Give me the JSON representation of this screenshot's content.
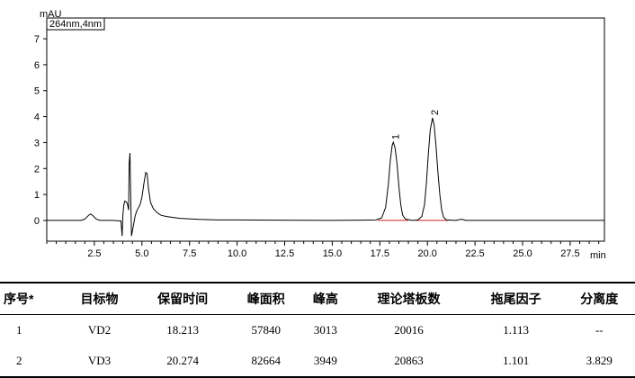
{
  "chart_data": {
    "type": "line",
    "ylabel": "mAU",
    "xlabel": "min",
    "series_label": "264nm,4nm",
    "xlim": [
      0,
      29.3
    ],
    "ylim": [
      -0.8,
      7.8
    ],
    "x_ticks": [
      "2.5",
      "5.0",
      "7.5",
      "10.0",
      "12.5",
      "15.0",
      "17.5",
      "20.0",
      "22.5",
      "25.0",
      "27.5"
    ],
    "y_ticks": [
      "0",
      "1",
      "2",
      "3",
      "4",
      "5",
      "6",
      "7"
    ],
    "x_tick_values": [
      2.5,
      5.0,
      7.5,
      10.0,
      12.5,
      15.0,
      17.5,
      20.0,
      22.5,
      25.0,
      27.5
    ],
    "y_tick_values": [
      0,
      1,
      2,
      3,
      4,
      5,
      6,
      7
    ],
    "peaks": [
      {
        "label": "1",
        "x": 18.21,
        "y": 3.01
      },
      {
        "label": "2",
        "x": 20.27,
        "y": 3.95
      }
    ],
    "trace": [
      [
        0,
        0.0
      ],
      [
        1.8,
        0.0
      ],
      [
        2.0,
        0.05
      ],
      [
        2.2,
        0.2
      ],
      [
        2.3,
        0.25
      ],
      [
        2.4,
        0.2
      ],
      [
        2.6,
        0.05
      ],
      [
        2.8,
        0.0
      ],
      [
        3.5,
        0.0
      ],
      [
        3.9,
        -0.02
      ],
      [
        3.96,
        -0.6
      ],
      [
        4.0,
        0.2
      ],
      [
        4.05,
        0.6
      ],
      [
        4.1,
        0.75
      ],
      [
        4.2,
        0.7
      ],
      [
        4.25,
        0.6
      ],
      [
        4.3,
        0.4
      ],
      [
        4.33,
        2.2
      ],
      [
        4.37,
        2.6
      ],
      [
        4.41,
        1.0
      ],
      [
        4.45,
        -0.6
      ],
      [
        4.55,
        -0.2
      ],
      [
        4.65,
        0.2
      ],
      [
        4.75,
        0.4
      ],
      [
        4.9,
        0.6
      ],
      [
        5.0,
        0.9
      ],
      [
        5.1,
        1.4
      ],
      [
        5.2,
        1.85
      ],
      [
        5.27,
        1.8
      ],
      [
        5.35,
        1.2
      ],
      [
        5.45,
        0.7
      ],
      [
        5.6,
        0.45
      ],
      [
        5.8,
        0.3
      ],
      [
        6.0,
        0.2
      ],
      [
        6.3,
        0.15
      ],
      [
        6.6,
        0.12
      ],
      [
        7.0,
        0.08
      ],
      [
        8.0,
        0.04
      ],
      [
        9.0,
        0.02
      ],
      [
        10.0,
        0.02
      ],
      [
        12.0,
        0.01
      ],
      [
        15.0,
        0.0
      ],
      [
        16.5,
        0.01
      ],
      [
        17.3,
        0.02
      ],
      [
        17.6,
        0.1
      ],
      [
        17.8,
        0.5
      ],
      [
        17.95,
        1.4
      ],
      [
        18.05,
        2.3
      ],
      [
        18.15,
        2.9
      ],
      [
        18.21,
        3.01
      ],
      [
        18.3,
        2.8
      ],
      [
        18.4,
        2.2
      ],
      [
        18.5,
        1.3
      ],
      [
        18.6,
        0.6
      ],
      [
        18.7,
        0.2
      ],
      [
        18.85,
        0.05
      ],
      [
        19.2,
        0.0
      ],
      [
        19.5,
        0.02
      ],
      [
        19.7,
        0.15
      ],
      [
        19.85,
        0.6
      ],
      [
        19.95,
        1.5
      ],
      [
        20.05,
        2.6
      ],
      [
        20.15,
        3.5
      ],
      [
        20.27,
        3.95
      ],
      [
        20.35,
        3.7
      ],
      [
        20.45,
        2.9
      ],
      [
        20.55,
        1.9
      ],
      [
        20.65,
        1.0
      ],
      [
        20.75,
        0.4
      ],
      [
        20.85,
        0.12
      ],
      [
        21.0,
        0.02
      ],
      [
        21.5,
        0.0
      ],
      [
        21.8,
        0.05
      ],
      [
        22.0,
        0.0
      ],
      [
        24.0,
        0.0
      ],
      [
        27.0,
        0.0
      ],
      [
        29.3,
        0.0
      ]
    ]
  },
  "table": {
    "headers": [
      "序号*",
      "目标物",
      "保留时间",
      "峰面积",
      "峰高",
      "理论塔板数",
      "拖尾因子",
      "分离度"
    ],
    "rows": [
      [
        "1",
        "VD2",
        "18.213",
        "57840",
        "3013",
        "20016",
        "1.113",
        "--"
      ],
      [
        "2",
        "VD3",
        "20.274",
        "82664",
        "3949",
        "20863",
        "1.101",
        "3.829"
      ]
    ]
  }
}
